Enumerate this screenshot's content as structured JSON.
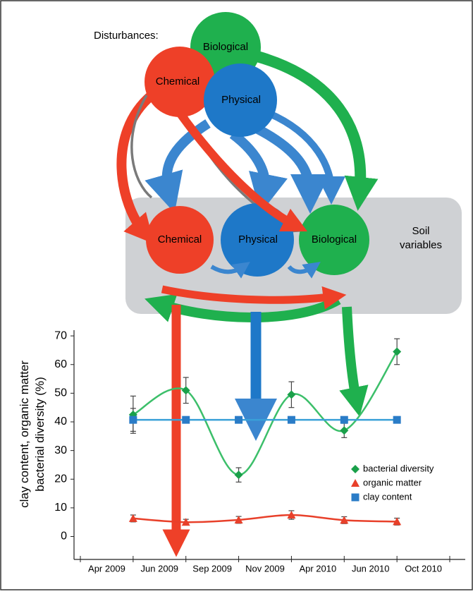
{
  "diagram": {
    "disturbances_label": "Disturbances:",
    "disturbances": [
      "Biological",
      "Chemical",
      "Physical"
    ],
    "soil_nodes": [
      "Chemical",
      "Physical",
      "Biological"
    ],
    "soil_label": [
      "Soil",
      "variables"
    ]
  },
  "chart_data": {
    "type": "line",
    "y_label": [
      "clay content, organic matter",
      "bacterial diversity (%)"
    ],
    "categories": [
      "Apr 2009",
      "Jun 2009",
      "Sep 2009",
      "Nov 2009",
      "Apr 2010",
      "Jun 2010",
      "Oct 2010"
    ],
    "series": [
      {
        "name": "bacterial diversity",
        "color": "#1aa04a",
        "line_color": "#3cbf6a",
        "marker": "diamond",
        "values": [
          42.5,
          51,
          21.5,
          49.5,
          37,
          64.5,
          null
        ],
        "errors": [
          6.5,
          4.5,
          2.5,
          4.5,
          2.5,
          4.5,
          null
        ],
        "smooth": true
      },
      {
        "name": "organic matter",
        "color": "#e8402a",
        "line_color": "#e8402a",
        "marker": "triangle",
        "values": [
          6.3,
          5,
          5.8,
          7.5,
          5.7,
          5.2,
          null
        ],
        "errors": [
          1.2,
          1,
          1.2,
          1.5,
          1.2,
          1.2,
          null
        ],
        "smooth": true
      },
      {
        "name": "clay content",
        "color": "#2a7cc7",
        "line_color": "#39a0d8",
        "marker": "square",
        "values": [
          40.7,
          40.7,
          40.7,
          40.7,
          40.7,
          40.7,
          null
        ],
        "errors": [
          4,
          null,
          null,
          null,
          null,
          null,
          null
        ],
        "smooth": false
      }
    ],
    "ylim": [
      -8,
      72
    ],
    "yticks": [
      0,
      10,
      20,
      30,
      40,
      50,
      60,
      70
    ]
  }
}
